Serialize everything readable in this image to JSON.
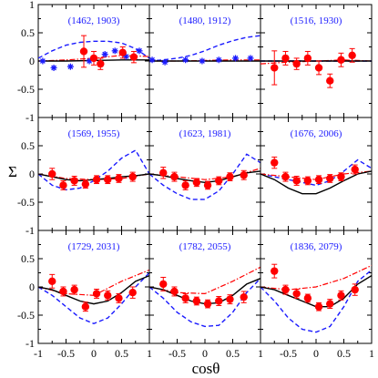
{
  "chart_data": {
    "type": "scatter",
    "xlabel": "cosθ",
    "ylabel": "Σ",
    "xlim": [
      -1,
      1
    ],
    "ylim": [
      -1,
      1
    ],
    "x_ticks": [
      "-1",
      "-0.5",
      "0",
      "0.5",
      "1"
    ],
    "y_ticks": [
      "-1",
      "-0.5",
      "0",
      "0.5",
      "1"
    ],
    "grid_rows": 3,
    "grid_cols": 3,
    "series_colors": {
      "data": "#ff0000",
      "other_data": "#1a1aff",
      "solid": "#000000",
      "dashed": "#1a1aff",
      "dashdot": "#ff0000"
    },
    "panels": [
      {
        "label": "(1462, 1903)",
        "points": [
          [
            -0.18,
            0.17,
            0.28
          ],
          [
            0.0,
            0.05,
            0.12
          ],
          [
            0.12,
            -0.05,
            0.1
          ],
          [
            0.52,
            0.15,
            0.1
          ],
          [
            0.72,
            0.07,
            0.1
          ]
        ],
        "points2": [
          [
            -0.92,
            0.0
          ],
          [
            -0.72,
            -0.12
          ],
          [
            -0.42,
            -0.1
          ],
          [
            -0.08,
            0.0
          ],
          [
            0.2,
            0.12
          ],
          [
            0.38,
            0.18
          ],
          [
            0.58,
            0.08
          ],
          [
            0.82,
            0.18
          ]
        ],
        "solid": [
          [
            -1,
            0.0
          ],
          [
            -0.5,
            0.0
          ],
          [
            0,
            0.01
          ],
          [
            0.5,
            0.02
          ],
          [
            1,
            0.02
          ]
        ],
        "dashed": [
          [
            -1,
            0.05
          ],
          [
            -0.75,
            0.18
          ],
          [
            -0.5,
            0.28
          ],
          [
            -0.25,
            0.33
          ],
          [
            0,
            0.35
          ],
          [
            0.25,
            0.35
          ],
          [
            0.5,
            0.32
          ],
          [
            0.75,
            0.22
          ],
          [
            1,
            0.05
          ]
        ],
        "dashdot": [
          [
            -1,
            0.0
          ],
          [
            -0.5,
            0.02
          ],
          [
            0,
            0.05
          ],
          [
            0.5,
            0.1
          ],
          [
            1,
            0.08
          ]
        ]
      },
      {
        "label": "(1480, 1912)",
        "points": [],
        "points2": [
          [
            -0.95,
            0.02
          ],
          [
            -0.72,
            -0.02
          ],
          [
            -0.35,
            0.02
          ],
          [
            -0.05,
            0.0
          ],
          [
            0.25,
            0.02
          ],
          [
            0.55,
            0.05
          ],
          [
            0.82,
            0.05
          ]
        ],
        "solid": [
          [
            -1,
            0.0
          ],
          [
            -0.5,
            0.0
          ],
          [
            0,
            0.0
          ],
          [
            0.5,
            0.0
          ],
          [
            1,
            0.0
          ]
        ],
        "dashed": [
          [
            -1,
            0.0
          ],
          [
            -0.75,
            0.02
          ],
          [
            -0.5,
            0.05
          ],
          [
            -0.25,
            0.1
          ],
          [
            0,
            0.18
          ],
          [
            0.25,
            0.28
          ],
          [
            0.5,
            0.36
          ],
          [
            0.75,
            0.42
          ],
          [
            1,
            0.45
          ]
        ],
        "dashdot": [
          [
            -1,
            0.0
          ],
          [
            -0.5,
            0.0
          ],
          [
            0,
            0.01
          ],
          [
            0.5,
            0.02
          ],
          [
            1,
            0.02
          ]
        ]
      },
      {
        "label": "(1516, 1930)",
        "points": [
          [
            -0.75,
            -0.12,
            0.3
          ],
          [
            -0.55,
            0.05,
            0.12
          ],
          [
            -0.35,
            -0.05,
            0.1
          ],
          [
            -0.15,
            0.05,
            0.12
          ],
          [
            0.05,
            -0.12,
            0.12
          ],
          [
            0.25,
            -0.35,
            0.12
          ],
          [
            0.45,
            0.02,
            0.12
          ],
          [
            0.65,
            0.1,
            0.12
          ]
        ],
        "points2": [],
        "solid": [
          [
            -1,
            0.0
          ],
          [
            -0.5,
            0.0
          ],
          [
            0,
            0.0
          ],
          [
            0.5,
            0.0
          ],
          [
            1,
            0.0
          ]
        ],
        "dashed": [
          [
            -1,
            0.0
          ],
          [
            -0.5,
            0.0
          ],
          [
            0,
            0.0
          ],
          [
            0.5,
            0.0
          ],
          [
            1,
            0.0
          ]
        ],
        "dashdot": [
          [
            -1,
            -0.05
          ],
          [
            -0.5,
            -0.02
          ],
          [
            0,
            0.0
          ],
          [
            0.5,
            0.02
          ],
          [
            1,
            0.0
          ]
        ]
      },
      {
        "label": "(1569, 1955)",
        "points": [
          [
            -0.75,
            0.0,
            0.1
          ],
          [
            -0.55,
            -0.2,
            0.08
          ],
          [
            -0.35,
            -0.12,
            0.08
          ],
          [
            -0.15,
            -0.18,
            0.07
          ],
          [
            0.05,
            -0.1,
            0.07
          ],
          [
            0.25,
            -0.1,
            0.07
          ],
          [
            0.45,
            -0.08,
            0.07
          ],
          [
            0.7,
            -0.05,
            0.08
          ]
        ],
        "points2": [],
        "solid": [
          [
            -1,
            0.0
          ],
          [
            -0.75,
            -0.05
          ],
          [
            -0.5,
            -0.1
          ],
          [
            -0.25,
            -0.12
          ],
          [
            0,
            -0.1
          ],
          [
            0.25,
            -0.08
          ],
          [
            0.5,
            -0.05
          ],
          [
            0.75,
            -0.03
          ],
          [
            1,
            0.0
          ]
        ],
        "dashed": [
          [
            -1,
            0.0
          ],
          [
            -0.75,
            -0.2
          ],
          [
            -0.5,
            -0.28
          ],
          [
            -0.25,
            -0.25
          ],
          [
            0,
            -0.12
          ],
          [
            0.25,
            0.05
          ],
          [
            0.5,
            0.28
          ],
          [
            0.75,
            0.42
          ],
          [
            1,
            0.0
          ]
        ],
        "dashdot": [
          [
            -1,
            0.0
          ],
          [
            -0.5,
            -0.08
          ],
          [
            0,
            -0.1
          ],
          [
            0.5,
            -0.08
          ],
          [
            1,
            0.0
          ]
        ]
      },
      {
        "label": "(1623, 1981)",
        "points": [
          [
            -0.75,
            0.02,
            0.1
          ],
          [
            -0.55,
            -0.05,
            0.08
          ],
          [
            -0.35,
            -0.2,
            0.08
          ],
          [
            -0.15,
            -0.15,
            0.07
          ],
          [
            0.05,
            -0.2,
            0.07
          ],
          [
            0.25,
            -0.12,
            0.07
          ],
          [
            0.45,
            -0.05,
            0.07
          ],
          [
            0.7,
            -0.02,
            0.08
          ]
        ],
        "points2": [],
        "solid": [
          [
            -1,
            0.0
          ],
          [
            -0.75,
            -0.03
          ],
          [
            -0.5,
            -0.08
          ],
          [
            -0.25,
            -0.12
          ],
          [
            0,
            -0.15
          ],
          [
            0.25,
            -0.12
          ],
          [
            0.5,
            -0.05
          ],
          [
            0.75,
            0.02
          ],
          [
            1,
            0.05
          ]
        ],
        "dashed": [
          [
            -1,
            0.0
          ],
          [
            -0.75,
            -0.2
          ],
          [
            -0.5,
            -0.35
          ],
          [
            -0.25,
            -0.45
          ],
          [
            0,
            -0.45
          ],
          [
            0.25,
            -0.3
          ],
          [
            0.5,
            0.0
          ],
          [
            0.75,
            0.35
          ],
          [
            1,
            0.2
          ]
        ],
        "dashdot": [
          [
            -1,
            0.0
          ],
          [
            -0.5,
            -0.05
          ],
          [
            0,
            -0.1
          ],
          [
            0.5,
            -0.05
          ],
          [
            1,
            0.1
          ]
        ]
      },
      {
        "label": "(1676, 2006)",
        "points": [
          [
            -0.75,
            0.2,
            0.1
          ],
          [
            -0.55,
            -0.05,
            0.08
          ],
          [
            -0.35,
            -0.12,
            0.08
          ],
          [
            -0.15,
            -0.12,
            0.07
          ],
          [
            0.05,
            -0.1,
            0.07
          ],
          [
            0.25,
            -0.08,
            0.07
          ],
          [
            0.45,
            -0.05,
            0.07
          ],
          [
            0.7,
            0.08,
            0.08
          ]
        ],
        "points2": [],
        "solid": [
          [
            -1,
            0.0
          ],
          [
            -0.75,
            -0.1
          ],
          [
            -0.5,
            -0.25
          ],
          [
            -0.25,
            -0.35
          ],
          [
            0,
            -0.35
          ],
          [
            0.25,
            -0.25
          ],
          [
            0.5,
            -0.12
          ],
          [
            0.75,
            0.0
          ],
          [
            1,
            0.05
          ]
        ],
        "dashed": [
          [
            -1,
            0.0
          ],
          [
            -0.75,
            -0.05
          ],
          [
            -0.5,
            -0.1
          ],
          [
            -0.25,
            -0.15
          ],
          [
            0,
            -0.2
          ],
          [
            0.25,
            -0.12
          ],
          [
            0.5,
            0.05
          ],
          [
            0.75,
            0.25
          ],
          [
            1,
            0.1
          ]
        ],
        "dashdot": [
          [
            -1,
            0.0
          ],
          [
            -0.5,
            -0.05
          ],
          [
            0,
            -0.1
          ],
          [
            0.5,
            0.0
          ],
          [
            1,
            0.05
          ]
        ]
      },
      {
        "label": "(1729, 2031)",
        "points": [
          [
            -0.75,
            0.1,
            0.12
          ],
          [
            -0.55,
            -0.08,
            0.08
          ],
          [
            -0.35,
            -0.05,
            0.08
          ],
          [
            -0.15,
            -0.35,
            0.08
          ],
          [
            0.05,
            -0.12,
            0.08
          ],
          [
            0.25,
            -0.15,
            0.08
          ],
          [
            0.45,
            -0.2,
            0.08
          ],
          [
            0.7,
            -0.1,
            0.1
          ]
        ],
        "points2": [],
        "solid": [
          [
            -1,
            0.0
          ],
          [
            -0.75,
            -0.05
          ],
          [
            -0.5,
            -0.15
          ],
          [
            -0.25,
            -0.25
          ],
          [
            0,
            -0.3
          ],
          [
            0.25,
            -0.25
          ],
          [
            0.5,
            -0.1
          ],
          [
            0.75,
            0.1
          ],
          [
            1,
            0.2
          ]
        ],
        "dashed": [
          [
            -1,
            0.0
          ],
          [
            -0.75,
            -0.15
          ],
          [
            -0.5,
            -0.35
          ],
          [
            -0.25,
            -0.55
          ],
          [
            0,
            -0.65
          ],
          [
            0.25,
            -0.55
          ],
          [
            0.5,
            -0.3
          ],
          [
            0.75,
            0.0
          ],
          [
            1,
            0.25
          ]
        ],
        "dashdot": [
          [
            -1,
            0.0
          ],
          [
            -0.5,
            -0.12
          ],
          [
            0,
            -0.15
          ],
          [
            0.5,
            0.1
          ],
          [
            1,
            0.3
          ]
        ]
      },
      {
        "label": "(1782, 2055)",
        "points": [
          [
            -0.75,
            0.05,
            0.12
          ],
          [
            -0.55,
            -0.08,
            0.08
          ],
          [
            -0.35,
            -0.2,
            0.08
          ],
          [
            -0.15,
            -0.25,
            0.07
          ],
          [
            0.05,
            -0.3,
            0.07
          ],
          [
            0.25,
            -0.25,
            0.08
          ],
          [
            0.45,
            -0.22,
            0.08
          ],
          [
            0.7,
            -0.18,
            0.1
          ]
        ],
        "points2": [],
        "solid": [
          [
            -1,
            0.0
          ],
          [
            -0.75,
            -0.05
          ],
          [
            -0.5,
            -0.15
          ],
          [
            -0.25,
            -0.25
          ],
          [
            0,
            -0.3
          ],
          [
            0.25,
            -0.28
          ],
          [
            0.5,
            -0.15
          ],
          [
            0.75,
            0.05
          ],
          [
            1,
            0.15
          ]
        ],
        "dashed": [
          [
            -1,
            0.0
          ],
          [
            -0.75,
            -0.2
          ],
          [
            -0.5,
            -0.45
          ],
          [
            -0.25,
            -0.62
          ],
          [
            0,
            -0.7
          ],
          [
            0.25,
            -0.68
          ],
          [
            0.5,
            -0.45
          ],
          [
            0.75,
            -0.1
          ],
          [
            1,
            0.15
          ]
        ],
        "dashdot": [
          [
            -1,
            0.0
          ],
          [
            -0.5,
            -0.1
          ],
          [
            0,
            -0.12
          ],
          [
            0.5,
            0.1
          ],
          [
            1,
            0.35
          ]
        ]
      },
      {
        "label": "(1836, 2079)",
        "points": [
          [
            -0.75,
            0.28,
            0.12
          ],
          [
            -0.55,
            -0.05,
            0.08
          ],
          [
            -0.35,
            -0.12,
            0.08
          ],
          [
            -0.15,
            -0.2,
            0.07
          ],
          [
            0.05,
            -0.35,
            0.07
          ],
          [
            0.25,
            -0.3,
            0.08
          ],
          [
            0.45,
            -0.15,
            0.08
          ],
          [
            0.7,
            -0.05,
            0.1
          ]
        ],
        "points2": [],
        "solid": [
          [
            -1,
            0.0
          ],
          [
            -0.75,
            -0.05
          ],
          [
            -0.5,
            -0.15
          ],
          [
            -0.25,
            -0.25
          ],
          [
            0,
            -0.35
          ],
          [
            0.25,
            -0.35
          ],
          [
            0.5,
            -0.2
          ],
          [
            0.75,
            0.05
          ],
          [
            1,
            0.2
          ]
        ],
        "dashed": [
          [
            -1,
            0.0
          ],
          [
            -0.75,
            -0.25
          ],
          [
            -0.5,
            -0.55
          ],
          [
            -0.25,
            -0.75
          ],
          [
            0,
            -0.8
          ],
          [
            0.25,
            -0.7
          ],
          [
            0.5,
            -0.35
          ],
          [
            0.75,
            0.1
          ],
          [
            1,
            0.3
          ]
        ],
        "dashdot": [
          [
            -1,
            0.0
          ],
          [
            -0.5,
            -0.05
          ],
          [
            0,
            0.0
          ],
          [
            0.5,
            0.15
          ],
          [
            1,
            0.38
          ]
        ]
      }
    ]
  }
}
